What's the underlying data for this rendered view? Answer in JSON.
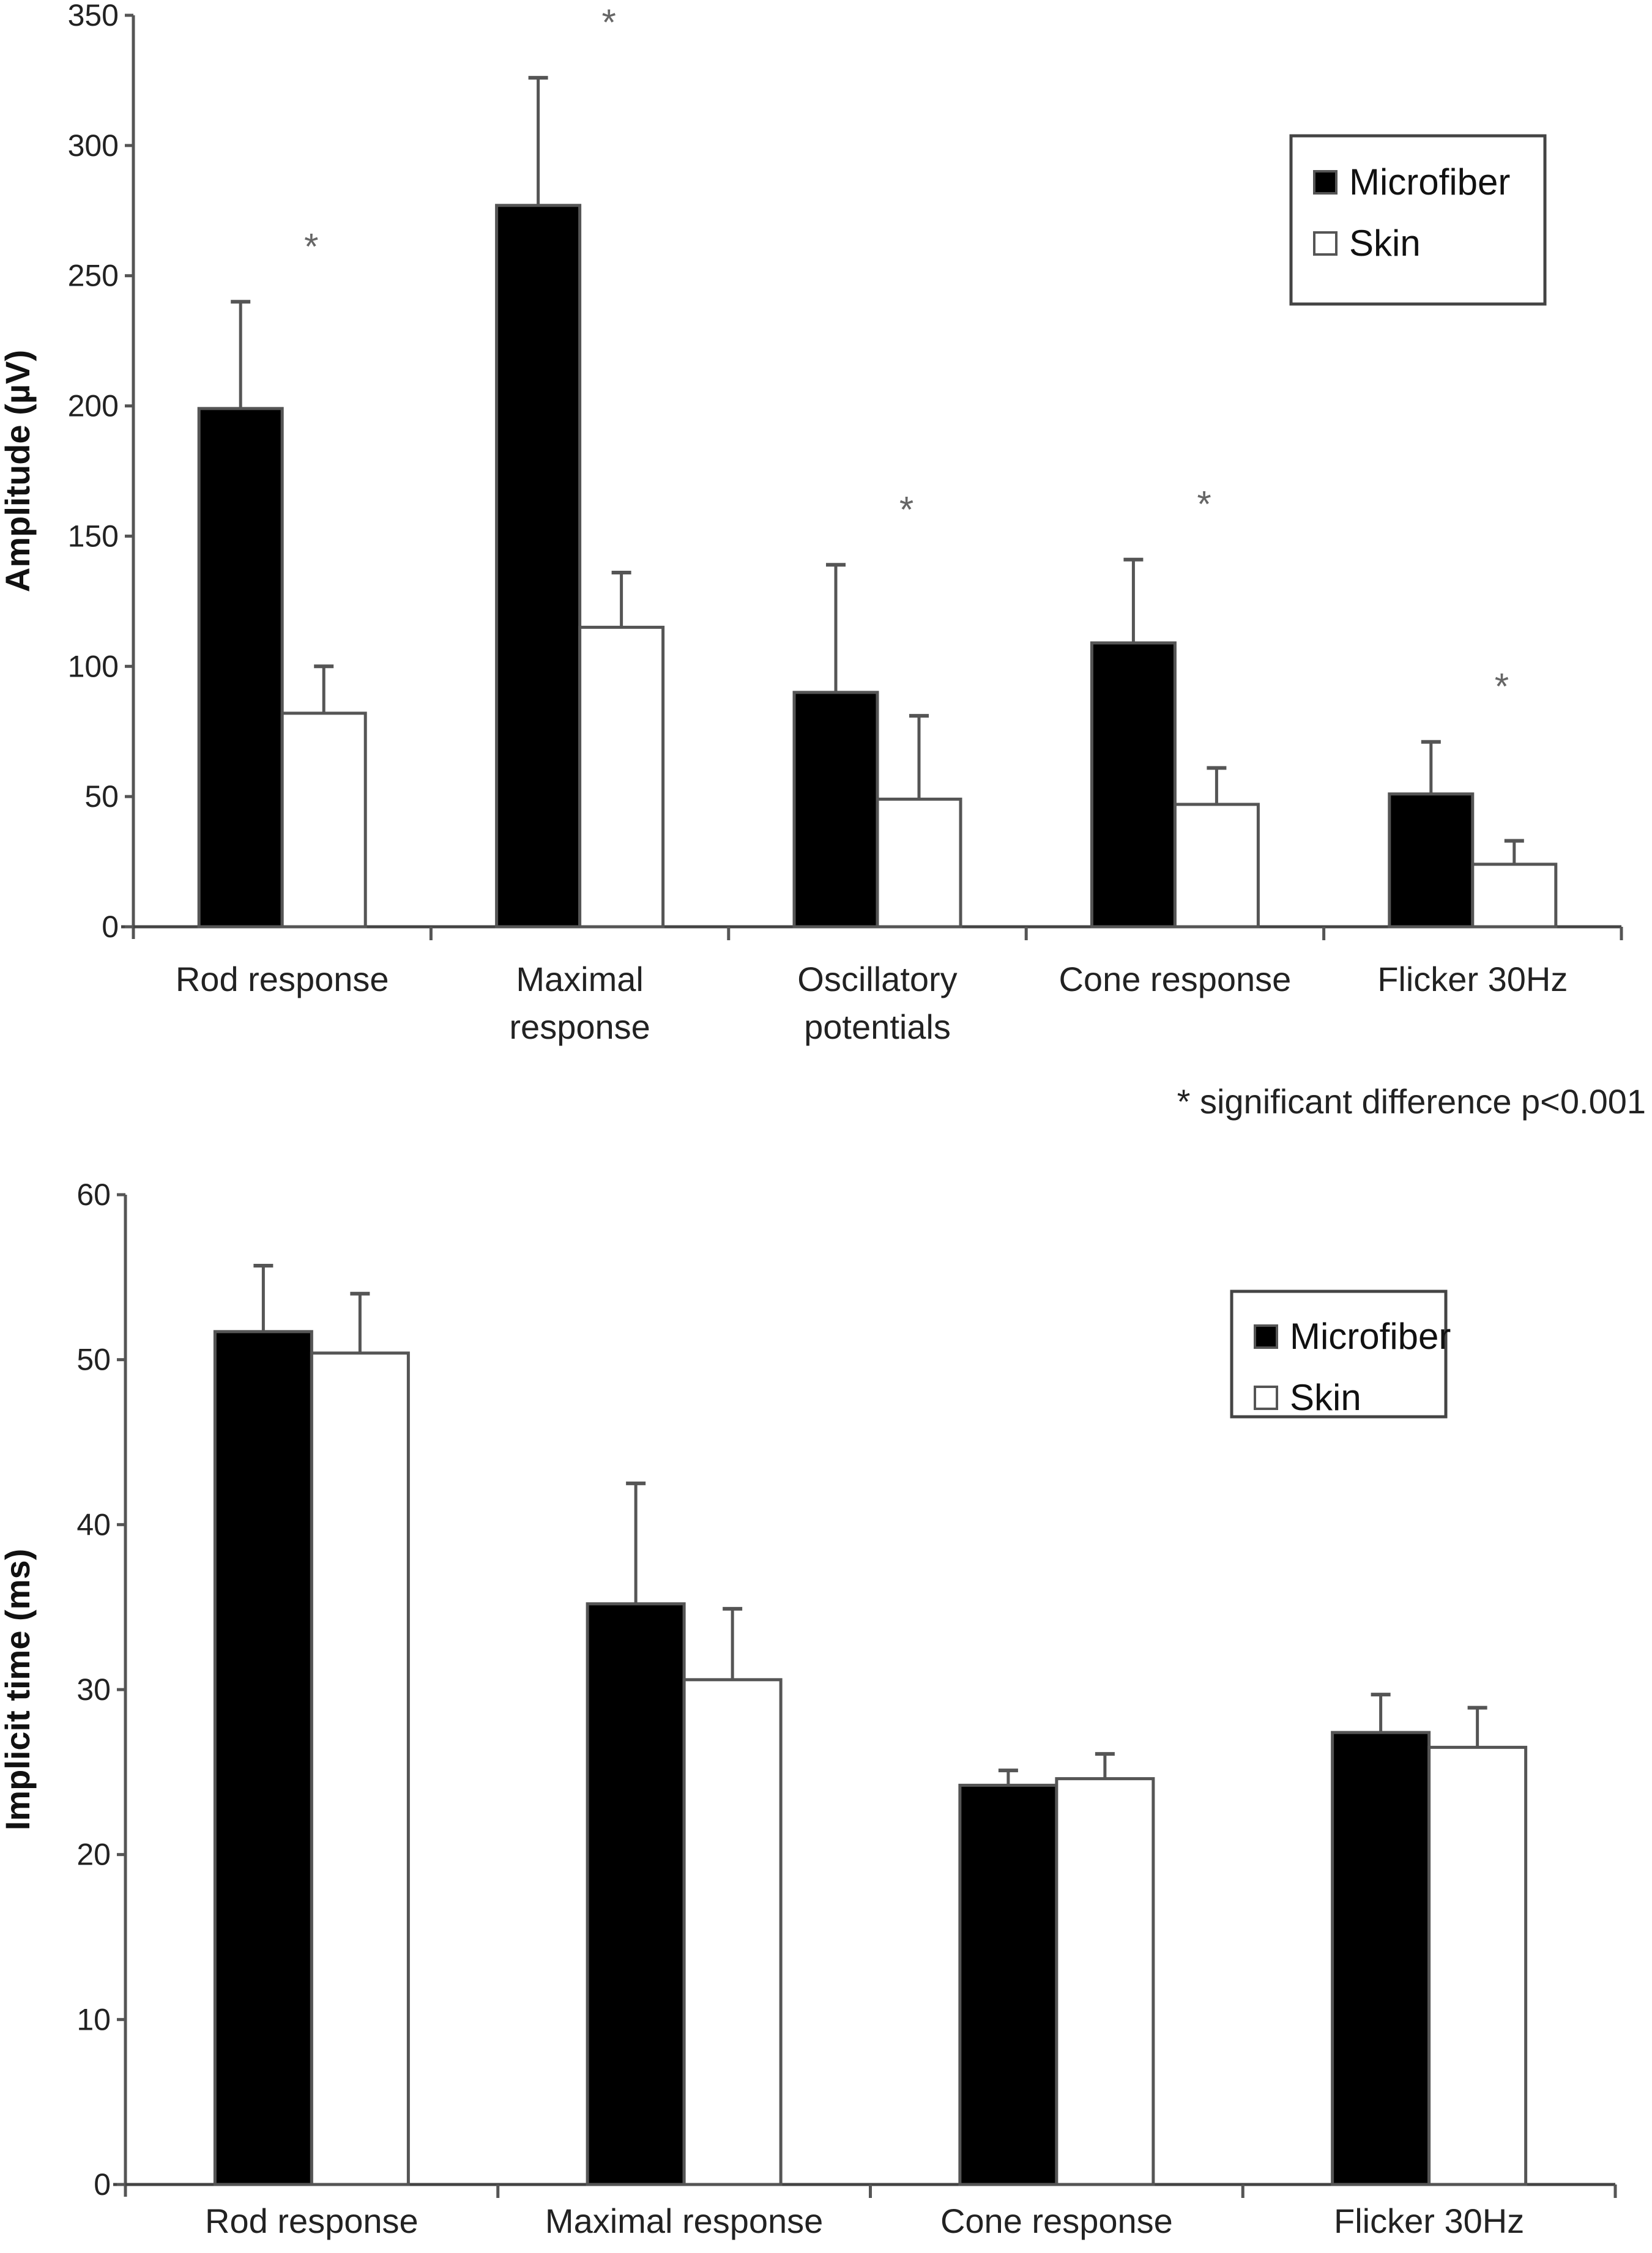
{
  "chart_data": [
    {
      "type": "bar",
      "title": "",
      "xlabel": "",
      "ylabel": "Amplitude (µV)",
      "ylim": [
        0,
        350
      ],
      "yticks": [
        0,
        50,
        100,
        150,
        200,
        250,
        300,
        350
      ],
      "grid": false,
      "legend_position": "top-right",
      "categories": [
        [
          "Rod response"
        ],
        [
          "Maximal",
          "response"
        ],
        [
          "Oscillatory",
          "potentials"
        ],
        [
          "Cone response"
        ],
        [
          "Flicker 30Hz"
        ]
      ],
      "series": [
        {
          "name": "Microfiber",
          "color": "#000000",
          "values": [
            199,
            277,
            90,
            109,
            51
          ],
          "error_upper": [
            240,
            326,
            139,
            141,
            71
          ]
        },
        {
          "name": "Skin",
          "color": "#ffffff",
          "values": [
            82,
            115,
            49,
            47,
            24
          ],
          "error_upper": [
            100,
            136,
            81,
            61,
            33
          ]
        }
      ],
      "significance_markers": [
        "*",
        "*",
        "*",
        "*",
        "*"
      ],
      "footnote": "* significant difference p<0.001"
    },
    {
      "type": "bar",
      "title": "",
      "xlabel": "",
      "ylabel": "Implicit time (ms)",
      "ylim": [
        0,
        60
      ],
      "yticks": [
        0,
        10,
        20,
        30,
        40,
        50,
        60
      ],
      "grid": false,
      "legend_position": "top-right",
      "categories": [
        [
          "Rod response"
        ],
        [
          "Maximal response"
        ],
        [
          "Cone response"
        ],
        [
          "Flicker 30Hz"
        ]
      ],
      "series": [
        {
          "name": "Microfiber",
          "color": "#000000",
          "values": [
            51.7,
            35.2,
            24.2,
            27.4
          ],
          "error_upper": [
            55.7,
            42.5,
            25.1,
            29.7
          ]
        },
        {
          "name": "Skin",
          "color": "#ffffff",
          "values": [
            50.4,
            30.6,
            24.6,
            26.5
          ],
          "error_upper": [
            54.0,
            34.9,
            26.1,
            28.9
          ]
        }
      ]
    }
  ]
}
